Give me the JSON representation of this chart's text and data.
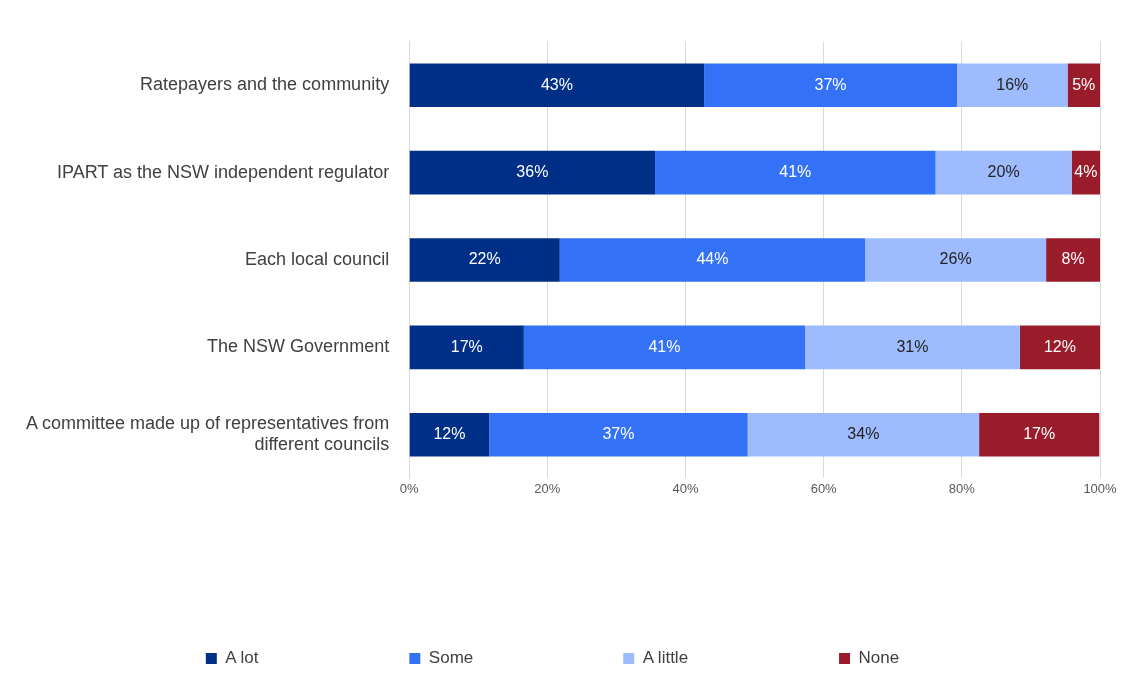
{
  "chart_data": {
    "type": "bar",
    "orientation": "horizontal",
    "stacked": true,
    "categories": [
      "Ratepayers and the community",
      "IPART as the NSW independent regulator",
      "Each local council",
      "The NSW Government",
      "A committee made up of representatives from different councils"
    ],
    "series": [
      {
        "name": "A lot",
        "color": "#002f87",
        "values": [
          42.7,
          35.6,
          21.8,
          16.6,
          11.6
        ],
        "value_labels": [
          "43%",
          "36%",
          "22%",
          "17%",
          "12%"
        ]
      },
      {
        "name": "Some",
        "color": "#3372f6",
        "values": [
          36.6,
          40.6,
          44.2,
          40.7,
          37.4
        ],
        "value_labels": [
          "37%",
          "41%",
          "44%",
          "41%",
          "37%"
        ]
      },
      {
        "name": "A little",
        "color": "#9dbbfd",
        "values": [
          16.0,
          19.7,
          26.2,
          31.1,
          33.5
        ],
        "value_labels": [
          "16%",
          "20%",
          "26%",
          "31%",
          "34%"
        ]
      },
      {
        "name": "None",
        "color": "#9a1c2b",
        "values": [
          4.7,
          4.1,
          7.8,
          11.6,
          17.4
        ],
        "value_labels": [
          "5%",
          "4%",
          "8%",
          "12%",
          "17%"
        ]
      }
    ],
    "xlim": [
      0,
      100
    ],
    "xticks": [
      {
        "value": 0,
        "label": "0%"
      },
      {
        "value": 20,
        "label": "20%"
      },
      {
        "value": 40,
        "label": "40%"
      },
      {
        "value": 60,
        "label": "60%"
      },
      {
        "value": 80,
        "label": "80%"
      },
      {
        "value": 100,
        "label": "100%"
      }
    ],
    "grid": "x",
    "legend": "bottom"
  }
}
